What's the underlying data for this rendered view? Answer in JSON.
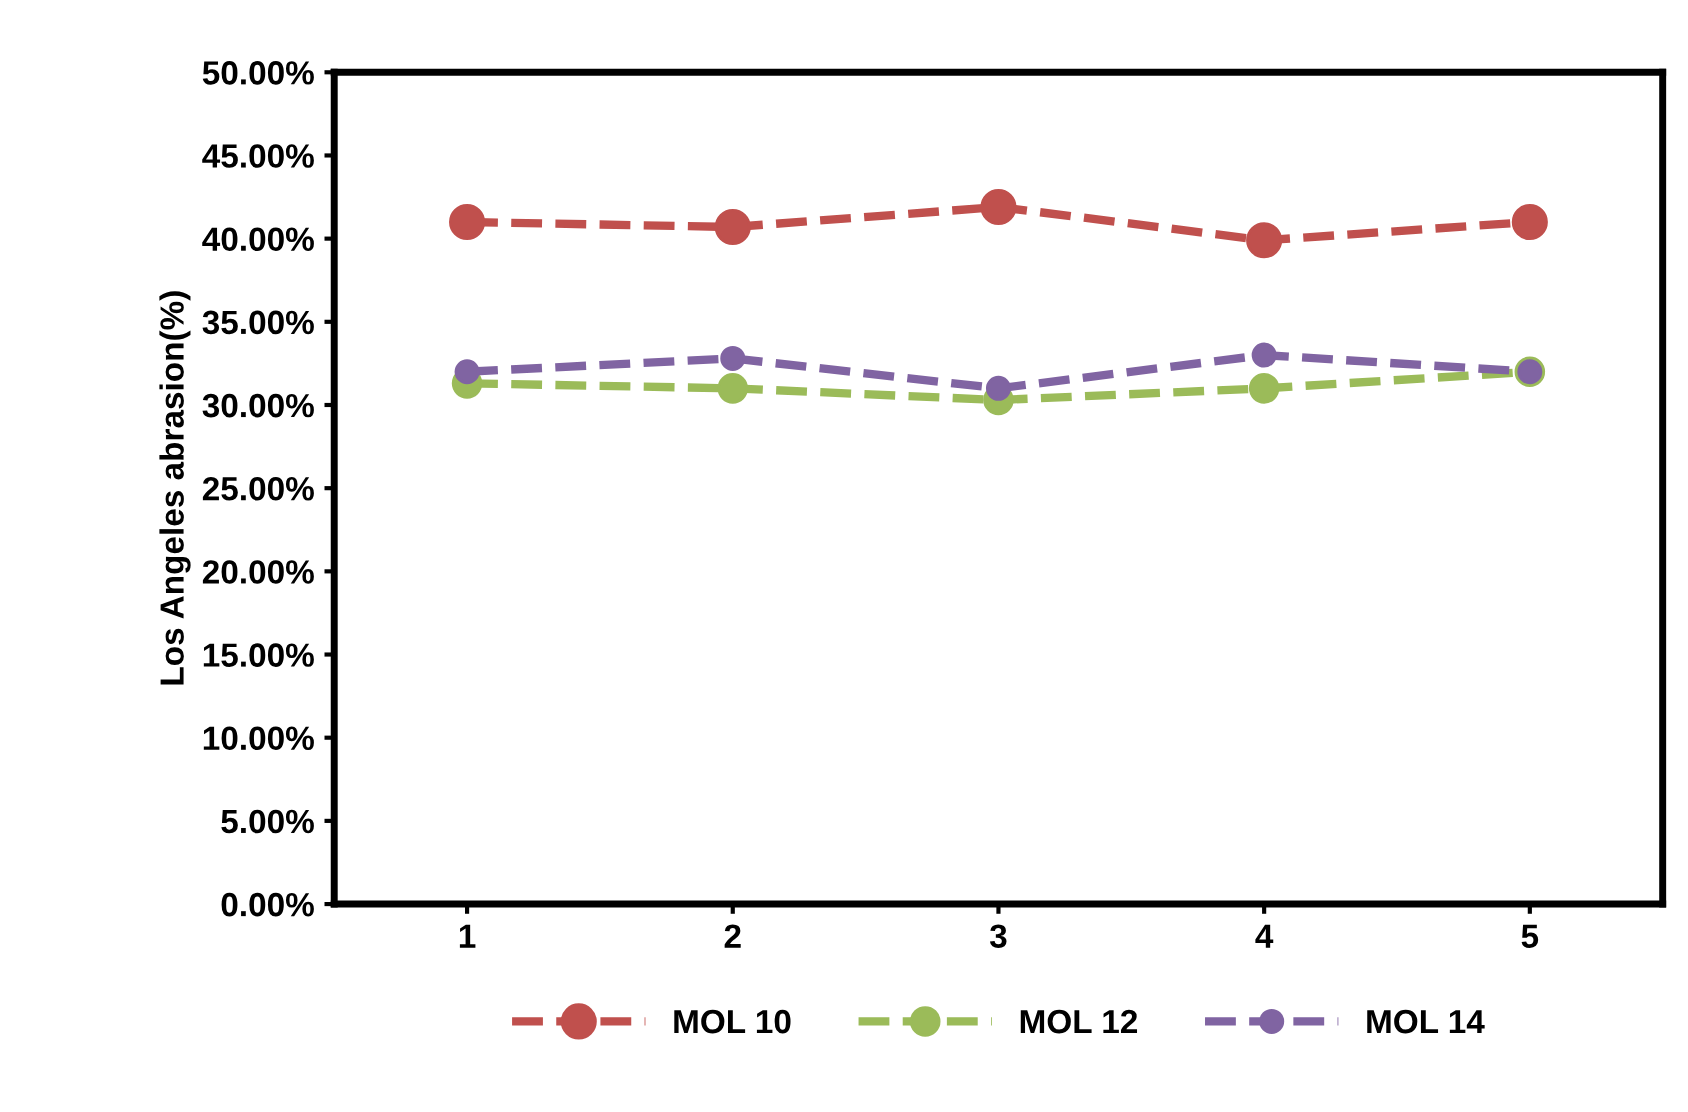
{
  "chart_data": {
    "type": "line",
    "ylabel": "Los Angeles abrasion(%)",
    "categories": [
      "1",
      "2",
      "3",
      "4",
      "5"
    ],
    "series": [
      {
        "name": "MOL 10",
        "color": "#c0504d",
        "values": [
          41.0,
          40.7,
          41.9,
          39.9,
          41.0
        ]
      },
      {
        "name": "MOL 12",
        "color": "#9bbb59",
        "values": [
          31.3,
          31.0,
          30.3,
          31.0,
          32.0
        ]
      },
      {
        "name": "MOL 14",
        "color": "#8064a2",
        "values": [
          32.0,
          32.8,
          31.0,
          33.0,
          32.0
        ]
      }
    ],
    "ylim": [
      0,
      50
    ],
    "yticks": [
      {
        "value": 0,
        "label": "0.00%"
      },
      {
        "value": 5,
        "label": "5.00%"
      },
      {
        "value": 10,
        "label": "10.00%"
      },
      {
        "value": 15,
        "label": "15.00%"
      },
      {
        "value": 20,
        "label": "20.00%"
      },
      {
        "value": 25,
        "label": "25.00%"
      },
      {
        "value": 30,
        "label": "30.00%"
      },
      {
        "value": 35,
        "label": "35.00%"
      },
      {
        "value": 40,
        "label": "40.00%"
      },
      {
        "value": 45,
        "label": "45.00%"
      },
      {
        "value": 50,
        "label": "50.00%"
      }
    ],
    "marker": "circle",
    "line_style": "dashed",
    "legend": "bottom",
    "grid": false
  }
}
